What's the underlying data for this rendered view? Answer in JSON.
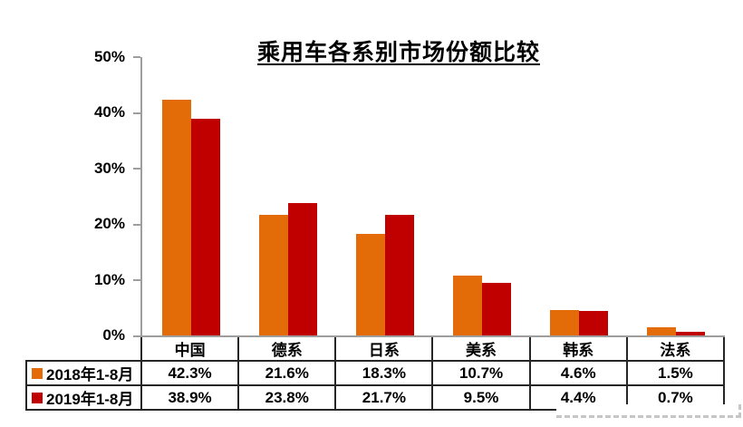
{
  "title": "乘用车各系别市场份额比较",
  "colors": {
    "series_2018": "#E36C09",
    "series_2019": "#C00000",
    "axis": "#9E9E9E",
    "table_border": "#262626",
    "text": "#000000",
    "background": "#FFFFFF"
  },
  "chart_data": {
    "type": "bar",
    "title": "乘用车各系别市场份额比较",
    "categories": [
      "中国",
      "德系",
      "日系",
      "美系",
      "韩系",
      "法系"
    ],
    "series": [
      {
        "name": "2018年1-8月",
        "color": "#E36C09",
        "values": [
          42.3,
          21.6,
          18.3,
          10.7,
          4.6,
          1.5
        ],
        "labels": [
          "42.3%",
          "21.6%",
          "18.3%",
          "10.7%",
          "4.6%",
          "1.5%"
        ]
      },
      {
        "name": "2019年1-8月",
        "color": "#C00000",
        "values": [
          38.9,
          23.8,
          21.7,
          9.5,
          4.4,
          0.7
        ],
        "labels": [
          "38.9%",
          "23.8%",
          "21.7%",
          "9.5%",
          "4.4%",
          "0.7%"
        ]
      }
    ],
    "xlabel": "",
    "ylabel": "",
    "ylim": [
      0,
      50
    ],
    "yticks": [
      "50%",
      "40%",
      "30%",
      "20%",
      "10%",
      "0%"
    ],
    "grid": false,
    "legend_position": "table-rows-bottom-left"
  }
}
